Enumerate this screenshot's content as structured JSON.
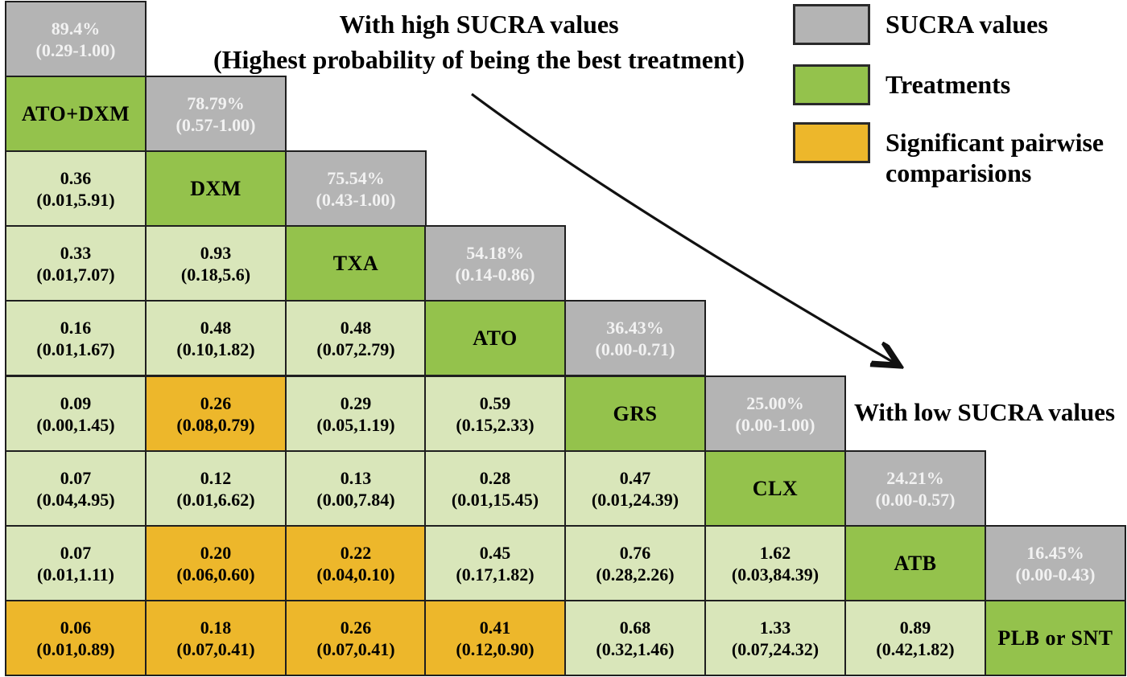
{
  "figure": {
    "title_line1": "With high SUCRA values",
    "title_line2": "(Highest probability of being the best treatment)",
    "low_sucra_label": "With low SUCRA values"
  },
  "legend": {
    "items": [
      {
        "label": "SUCRA values",
        "kind": "sucra",
        "color": "#b4b4b4"
      },
      {
        "label": "Treatments",
        "kind": "treatment",
        "color": "#94c24c"
      },
      {
        "label": "Significant pairwise comparisions",
        "kind": "significant",
        "color": "#edb72b"
      }
    ]
  },
  "colors": {
    "sucra_cell": "#b4b4b4",
    "treatment_cell": "#94c24c",
    "comparison_cell": "#d9e6ba",
    "significant_cell": "#edb72b",
    "border": "#1f1f1f",
    "sucra_text": "#f2f2f2",
    "cell_text": "#000000"
  },
  "chart_data": {
    "type": "heatmap",
    "layout": "lower-triangular league table, treatments on diagonal, SUCRA values in gray diagonal cells, pairwise estimates (95% interval) below diagonal, significant comparisons highlighted",
    "treatments": [
      "ATO+DXM",
      "DXM",
      "TXA",
      "ATO",
      "GRS",
      "CLX",
      "ATB",
      "PLB or SNT"
    ],
    "sucra_values": [
      {
        "treatment": "ATO+DXM",
        "value": "89.4%",
        "interval": "(0.29-1.00)"
      },
      {
        "treatment": "DXM",
        "value": "78.79%",
        "interval": "(0.57-1.00)"
      },
      {
        "treatment": "TXA",
        "value": "75.54%",
        "interval": "(0.43-1.00)"
      },
      {
        "treatment": "ATO",
        "value": "54.18%",
        "interval": "(0.14-0.86)"
      },
      {
        "treatment": "GRS",
        "value": "36.43%",
        "interval": "(0.00-0.71)"
      },
      {
        "treatment": "CLX",
        "value": "25.00%",
        "interval": "(0.00-1.00)"
      },
      {
        "treatment": "ATB",
        "value": "24.21%",
        "interval": "(0.00-0.57)"
      },
      {
        "treatment": "PLB or SNT",
        "value": "16.45%",
        "interval": "(0.00-0.43)"
      }
    ],
    "rows": [
      [
        {
          "kind": "sucra",
          "line1": "89.4%",
          "line2": "(0.29-1.00)"
        }
      ],
      [
        {
          "kind": "treatment",
          "line1": "ATO+DXM"
        },
        {
          "kind": "sucra",
          "line1": "78.79%",
          "line2": "(0.57-1.00)"
        }
      ],
      [
        {
          "kind": "estimate",
          "line1": "0.36",
          "line2": "(0.01,5.91)"
        },
        {
          "kind": "treatment",
          "line1": "DXM"
        },
        {
          "kind": "sucra",
          "line1": "75.54%",
          "line2": "(0.43-1.00)"
        }
      ],
      [
        {
          "kind": "estimate",
          "line1": "0.33",
          "line2": "(0.01,7.07)"
        },
        {
          "kind": "estimate",
          "line1": "0.93",
          "line2": "(0.18,5.6)"
        },
        {
          "kind": "treatment",
          "line1": "TXA"
        },
        {
          "kind": "sucra",
          "line1": "54.18%",
          "line2": "(0.14-0.86)"
        }
      ],
      [
        {
          "kind": "estimate",
          "line1": "0.16",
          "line2": "(0.01,1.67)"
        },
        {
          "kind": "estimate",
          "line1": "0.48",
          "line2": "(0.10,1.82)"
        },
        {
          "kind": "estimate",
          "line1": "0.48",
          "line2": "(0.07,2.79)"
        },
        {
          "kind": "treatment",
          "line1": "ATO"
        },
        {
          "kind": "sucra",
          "line1": "36.43%",
          "line2": "(0.00-0.71)"
        }
      ],
      [
        {
          "kind": "estimate",
          "line1": "0.09",
          "line2": "(0.00,1.45)"
        },
        {
          "kind": "significant",
          "line1": "0.26",
          "line2": "(0.08,0.79)"
        },
        {
          "kind": "estimate",
          "line1": "0.29",
          "line2": "(0.05,1.19)"
        },
        {
          "kind": "estimate",
          "line1": "0.59",
          "line2": "(0.15,2.33)"
        },
        {
          "kind": "treatment",
          "line1": "GRS"
        },
        {
          "kind": "sucra",
          "line1": "25.00%",
          "line2": "(0.00-1.00)"
        }
      ],
      [
        {
          "kind": "estimate",
          "line1": "0.07",
          "line2": "(0.04,4.95)"
        },
        {
          "kind": "estimate",
          "line1": "0.12",
          "line2": "(0.01,6.62)"
        },
        {
          "kind": "estimate",
          "line1": "0.13",
          "line2": "(0.00,7.84)"
        },
        {
          "kind": "estimate",
          "line1": "0.28",
          "line2": "(0.01,15.45)"
        },
        {
          "kind": "estimate",
          "line1": "0.47",
          "line2": "(0.01,24.39)"
        },
        {
          "kind": "treatment",
          "line1": "CLX"
        },
        {
          "kind": "sucra",
          "line1": "24.21%",
          "line2": "(0.00-0.57)"
        }
      ],
      [
        {
          "kind": "estimate",
          "line1": "0.07",
          "line2": "(0.01,1.11)"
        },
        {
          "kind": "significant",
          "line1": "0.20",
          "line2": "(0.06,0.60)"
        },
        {
          "kind": "significant",
          "line1": "0.22",
          "line2": "(0.04,0.10)"
        },
        {
          "kind": "estimate",
          "line1": "0.45",
          "line2": "(0.17,1.82)"
        },
        {
          "kind": "estimate",
          "line1": "0.76",
          "line2": "(0.28,2.26)"
        },
        {
          "kind": "estimate",
          "line1": "1.62",
          "line2": "(0.03,84.39)"
        },
        {
          "kind": "treatment",
          "line1": "ATB"
        },
        {
          "kind": "sucra",
          "line1": "16.45%",
          "line2": "(0.00-0.43)"
        }
      ],
      [
        {
          "kind": "significant",
          "line1": "0.06",
          "line2": "(0.01,0.89)"
        },
        {
          "kind": "significant",
          "line1": "0.18",
          "line2": "(0.07,0.41)"
        },
        {
          "kind": "significant",
          "line1": "0.26",
          "line2": "(0.07,0.41)"
        },
        {
          "kind": "significant",
          "line1": "0.41",
          "line2": "(0.12,0.90)"
        },
        {
          "kind": "estimate",
          "line1": "0.68",
          "line2": "(0.32,1.46)"
        },
        {
          "kind": "estimate",
          "line1": "1.33",
          "line2": "(0.07,24.32)"
        },
        {
          "kind": "estimate",
          "line1": "0.89",
          "line2": "(0.42,1.82)"
        },
        {
          "kind": "treatment",
          "line1": "PLB or SNT"
        }
      ]
    ]
  }
}
